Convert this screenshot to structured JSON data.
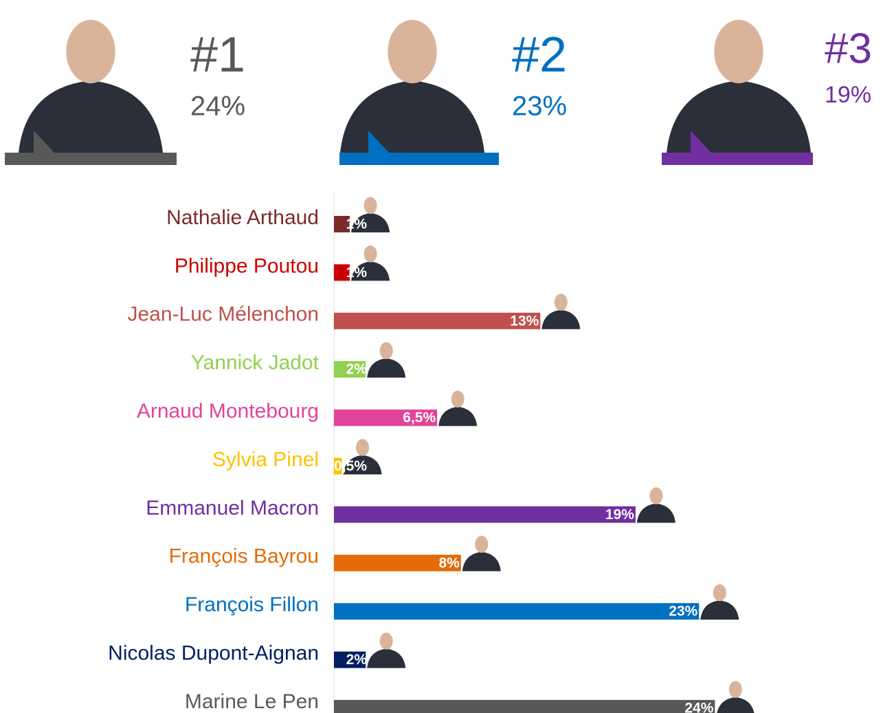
{
  "podium": [
    {
      "rank": "#1",
      "label": "24%",
      "color": "#595959"
    },
    {
      "rank": "#2",
      "label": "23%",
      "color": "#0070c0"
    },
    {
      "rank": "#3",
      "label": "19%",
      "color": "#7030a0"
    }
  ],
  "chart_data": {
    "type": "hbar",
    "categories": [
      "Nathalie Arthaud",
      "Philippe Poutou",
      "Jean-Luc Mélenchon",
      "Yannick Jadot",
      "Arnaud Montebourg",
      "Sylvia Pinel",
      "Emmanuel Macron",
      "François Bayrou",
      "François Fillon",
      "Nicolas Dupont-Aignan",
      "Marine Le Pen"
    ],
    "values": [
      1,
      1,
      13,
      2,
      6.5,
      0.5,
      19,
      8,
      23,
      2,
      24
    ],
    "value_labels": [
      "1%",
      "1%",
      "13%",
      "2%",
      "6,5%",
      "0,5%",
      "19%",
      "8%",
      "23%",
      "2%",
      "24%"
    ],
    "colors": [
      "#7b2a2a",
      "#cc0000",
      "#c0504d",
      "#92d050",
      "#e0449a",
      "#ffc000",
      "#7030a0",
      "#e36c09",
      "#0070c0",
      "#002060",
      "#595959"
    ]
  }
}
